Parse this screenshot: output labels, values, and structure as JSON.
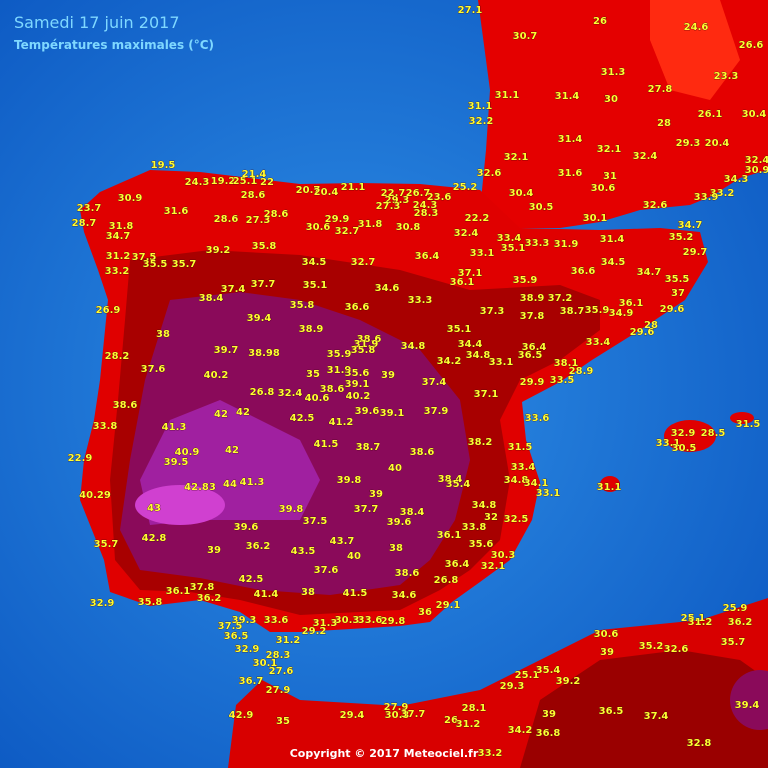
{
  "header": {
    "title": "Samedi 17 juin 2017",
    "subtitle": "Températures maximales (°C)"
  },
  "stations": [
    27.1,
    26,
    24.6,
    26.6,
    30.7,
    31.3,
    23.3,
    27.8,
    31.1,
    31.1,
    31.4,
    30,
    32.2,
    26.1,
    30.4,
    28,
    31.4,
    32.1,
    32.4,
    29.3,
    20.4,
    32.1,
    32.4,
    30.9,
    32.6,
    31.6,
    31,
    34.3,
    30.6,
    33.2,
    33.9,
    30.4,
    30.5,
    32.6,
    30.1,
    34.7,
    35.2,
    29.7,
    35.5,
    37,
    34.5,
    34.7,
    31.4,
    31.9,
    33.3,
    35.1,
    33.4,
    33.1,
    22.2,
    32.4,
    25.2,
    23.6,
    26.7,
    22.7,
    29.3,
    24.3,
    27.3,
    28.3,
    30.8,
    36.4,
    37.1,
    36.1,
    35.9,
    36.6,
    38.9,
    37.2,
    37.3,
    37.8,
    38.7,
    35.9,
    34.9,
    36.1,
    29.6,
    28,
    29.6,
    33.4,
    36.4,
    36.5,
    35.1,
    34.4,
    34.8,
    34.2,
    33.1,
    38.1,
    33.5,
    28.9,
    29.9,
    37.4,
    37.1,
    37.9,
    33.6,
    38.2,
    31.5,
    33.4,
    34.8,
    34.1,
    33.1,
    38.4,
    35.4,
    34.8,
    32.5,
    32,
    33.8,
    36.1,
    35.6,
    30.3,
    36.4,
    32.1,
    26.8,
    29.1,
    36,
    34.6,
    38.6,
    38,
    40,
    43.7,
    43.5,
    37.6,
    41.5,
    38,
    33.6,
    30.3,
    31.3,
    29.2,
    29.8,
    31.2,
    33.6,
    41.4,
    42.5,
    39.3,
    37.8,
    36.1,
    36.2,
    35.8,
    32.9,
    37.5,
    36.5,
    32.9,
    28.3,
    30.1,
    27.6,
    36.7,
    27.9,
    42.9,
    35,
    29.4,
    27.9,
    30.3,
    37.7,
    26,
    28.1,
    31.2,
    34.2,
    36.8,
    33.2,
    39,
    36.5,
    37.4,
    32.8,
    39.4,
    29.3,
    25.1,
    35.4,
    39.2,
    30.6,
    39,
    35.2,
    32.6,
    25.1,
    31.2,
    25.9,
    36.2,
    35.7,
    19.5,
    24.3,
    19.2,
    25.1,
    21.4,
    22,
    28.6,
    20.7,
    20.4,
    21.1,
    30.9,
    23.7,
    28.7,
    31.6,
    28.6,
    27.3,
    28.6,
    29.9,
    30.6,
    32.7,
    31.8,
    31.8,
    34.7,
    31.2,
    37.5,
    35.5,
    35.7,
    33.2,
    39.2,
    35.8,
    34.5,
    32.7,
    26.9,
    38.4,
    37.4,
    37.7,
    35.1,
    34.6,
    33.3,
    35.8,
    36.6,
    39.4,
    38.9,
    38,
    28.2,
    37.6,
    39.7,
    38.98,
    35.9,
    38.6,
    31.9,
    35.8,
    34.8,
    40.2,
    35,
    31.9,
    35.6,
    39,
    26.8,
    32.4,
    38.6,
    39.1,
    40.6,
    40.2,
    38.6,
    42,
    42,
    42.5,
    39.6,
    39.1,
    41.2,
    33.8,
    41.3,
    41.5,
    38.7,
    38.6,
    42,
    22.9,
    40.9,
    39.5,
    40,
    39.8,
    42.83,
    44,
    41.3,
    40.29,
    39,
    43,
    39.8,
    37.5,
    37.7,
    38.4,
    39.6,
    39.6,
    42.8,
    35.7,
    39,
    36.2,
    31.1,
    33.1,
    30.5,
    28.5,
    31.5,
    32.9
  ],
  "footer": "Copyright © 2017 Meteociel.fr"
}
